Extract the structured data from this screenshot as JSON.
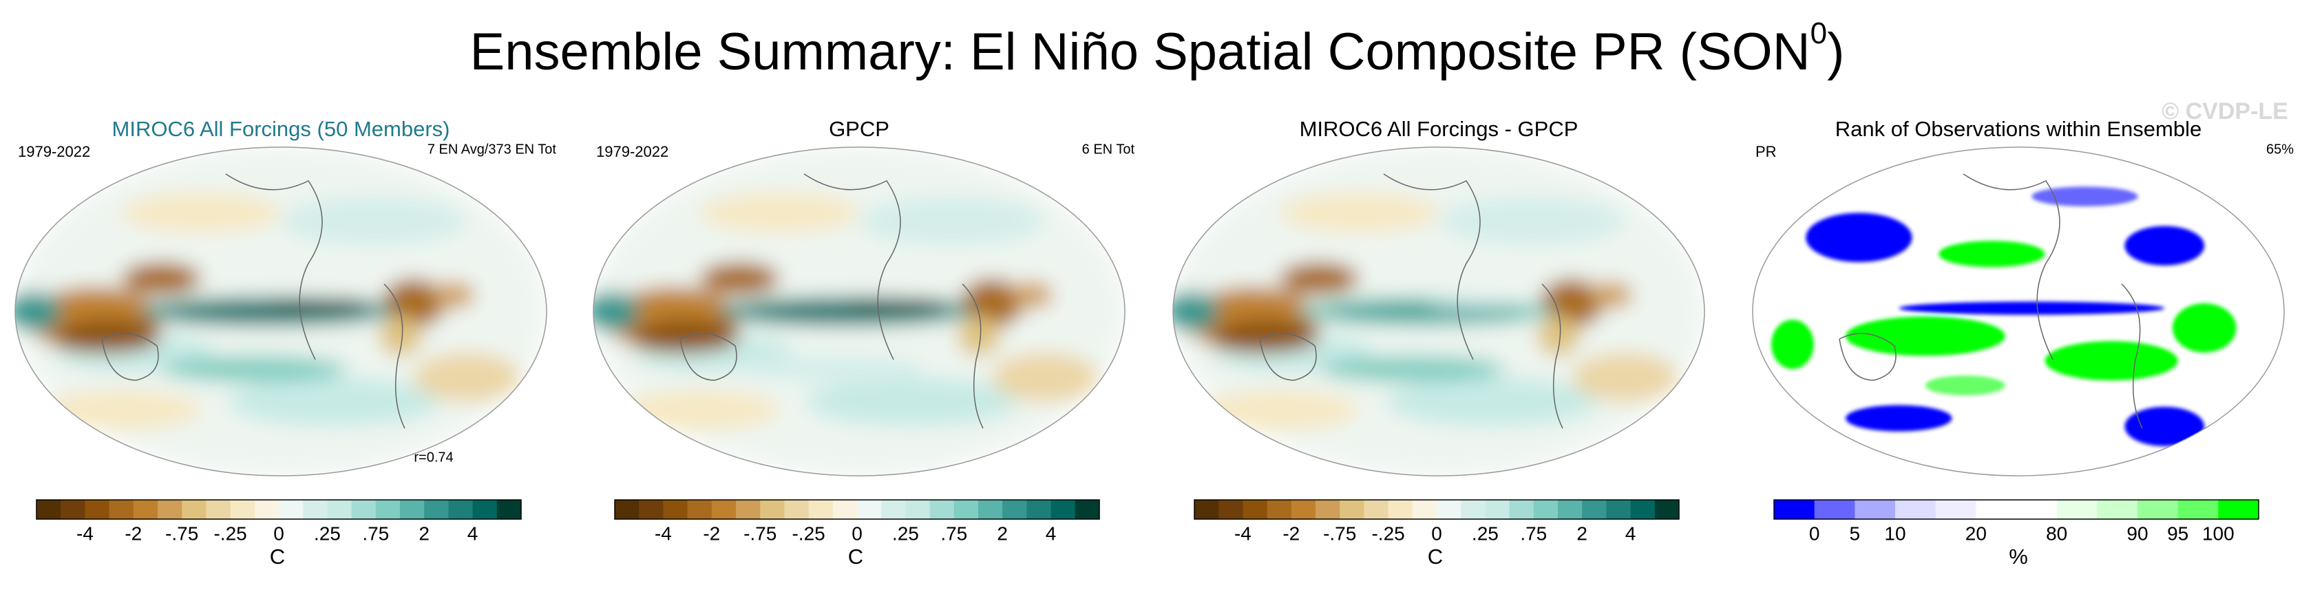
{
  "title": {
    "main": "Ensemble Summary: El Niño Spatial Composite PR (SON",
    "superscript": "0",
    "end": ")"
  },
  "watermark": "© CVDP-LE",
  "panels": [
    {
      "title": "MIROC6 All Forcings (50 Members)",
      "left_label": "1979-2022",
      "right_label": "7 EN Avg/373 EN Tot",
      "bottom_label": "r=0.74",
      "colorbar": {
        "ticks": [
          "-4",
          "-2",
          "-.75",
          "-.25",
          "0",
          ".25",
          ".75",
          "2",
          "4"
        ],
        "unit": "C"
      }
    },
    {
      "title": "GPCP",
      "left_label": "1979-2022",
      "right_label": "6 EN Tot",
      "colorbar": {
        "ticks": [
          "-4",
          "-2",
          "-.75",
          "-.25",
          "0",
          ".25",
          ".75",
          "2",
          "4"
        ],
        "unit": "C"
      }
    },
    {
      "title": "MIROC6 All Forcings - GPCP",
      "colorbar": {
        "ticks": [
          "-4",
          "-2",
          "-.75",
          "-.25",
          "0",
          ".25",
          ".75",
          "2",
          "4"
        ],
        "unit": "C"
      }
    },
    {
      "title": "Rank of Observations within Ensemble",
      "left_label": "PR",
      "right_label": "65%",
      "colorbar": {
        "ticks": [
          "0",
          "5",
          "10",
          "20",
          "80",
          "90",
          "95",
          "100"
        ],
        "unit": "%"
      }
    }
  ]
}
